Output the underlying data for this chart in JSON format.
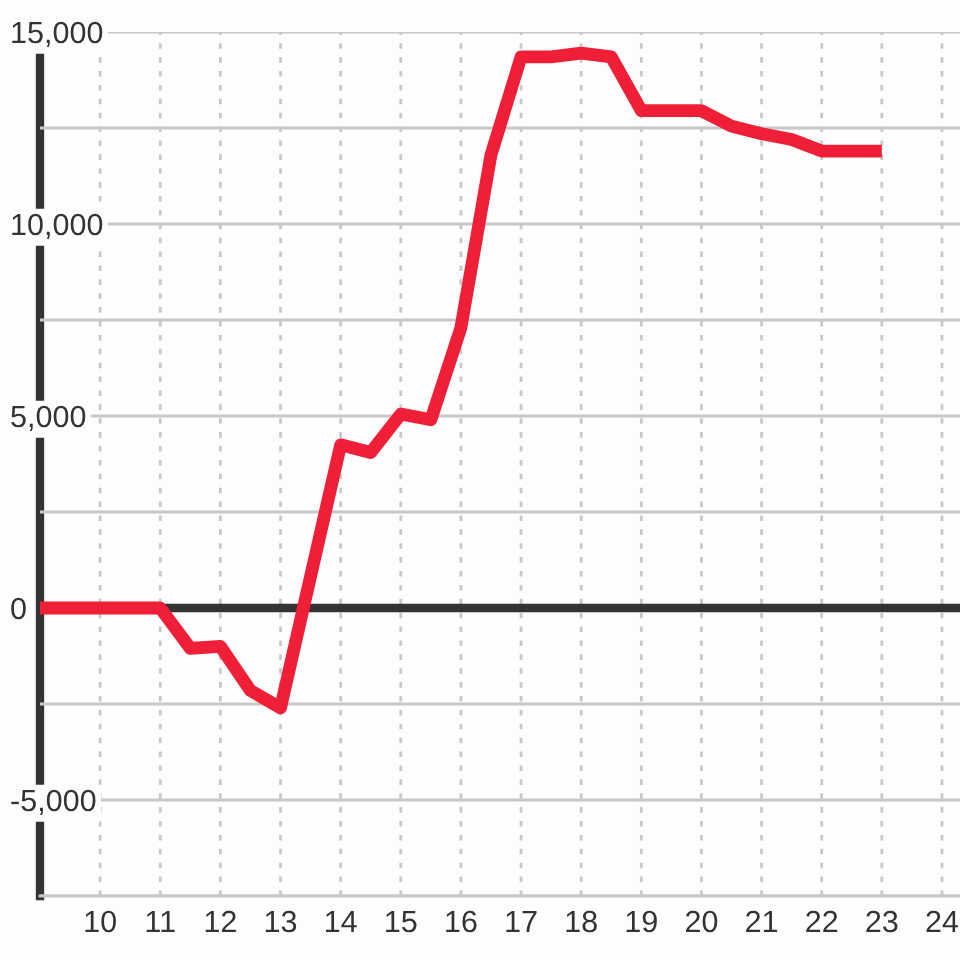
{
  "chart_data": {
    "type": "line",
    "x": [
      9,
      11,
      11.5,
      12,
      12.5,
      13,
      14,
      14.5,
      15,
      15.5,
      16,
      16.5,
      17,
      17.5,
      18,
      18.5,
      19,
      20,
      20.5,
      21,
      21.5,
      22,
      23
    ],
    "series": [
      {
        "color": "#ee1f36",
        "values": [
          0,
          0,
          -1050,
          -1000,
          -2150,
          -2600,
          4250,
          4050,
          5050,
          4900,
          7300,
          11800,
          14350,
          14350,
          14450,
          14350,
          12950,
          12950,
          12550,
          12350,
          12200,
          11900,
          11900
        ]
      }
    ],
    "xlim": [
      9,
      24.3
    ],
    "xticks": [
      10,
      11,
      12,
      13,
      14,
      15,
      16,
      17,
      18,
      19,
      20,
      21,
      22,
      23,
      24
    ],
    "ylim": [
      -7500,
      15000
    ],
    "yticks": [
      {
        "value": -7500,
        "label": null
      },
      {
        "value": -5000,
        "label": "-5,000"
      },
      {
        "value": -2500,
        "label": null
      },
      {
        "value": 0,
        "label": "0"
      },
      {
        "value": 2500,
        "label": null
      },
      {
        "value": 5000,
        "label": "5,000"
      },
      {
        "value": 7500,
        "label": null
      },
      {
        "value": 10000,
        "label": "10,000"
      },
      {
        "value": 12500,
        "label": null
      },
      {
        "value": 15000,
        "label": "15,000"
      }
    ],
    "ref_lines": [
      {
        "axis": "y",
        "value": 0,
        "color": "#333333"
      }
    ],
    "grid": true,
    "line_style": "solid",
    "marker": "none"
  }
}
